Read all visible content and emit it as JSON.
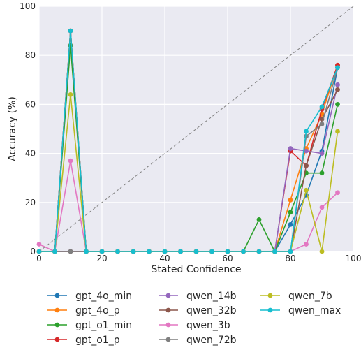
{
  "chart_data": {
    "type": "line",
    "title": "",
    "xlabel": "Stated Confidence",
    "ylabel": "Accuracy (%)",
    "xlim": [
      0,
      100
    ],
    "ylim": [
      0,
      100
    ],
    "xticks": [
      "0",
      "20",
      "40",
      "60",
      "80",
      "100"
    ],
    "yticks": [
      "0",
      "20",
      "40",
      "60",
      "80",
      "100"
    ],
    "grid": true,
    "reference_line": {
      "style": "dashed",
      "color": "#808080",
      "from": [
        0,
        0
      ],
      "to": [
        100,
        100
      ]
    },
    "legend_position": "bottom",
    "series": [
      {
        "name": "gpt_4o_min",
        "color": "#1f77b4",
        "points": [
          [
            0,
            0
          ],
          [
            5,
            0
          ],
          [
            10,
            90
          ],
          [
            15,
            0
          ],
          [
            20,
            0
          ],
          [
            25,
            0
          ],
          [
            30,
            0
          ],
          [
            35,
            0
          ],
          [
            40,
            0
          ],
          [
            45,
            0
          ],
          [
            50,
            0
          ],
          [
            55,
            0
          ],
          [
            60,
            0
          ],
          [
            65,
            0
          ],
          [
            70,
            0
          ],
          [
            75,
            0
          ],
          [
            80,
            11
          ],
          [
            85,
            23
          ],
          [
            90,
            41
          ],
          [
            95,
            75
          ]
        ]
      },
      {
        "name": "gpt_4o_p",
        "color": "#ff7f0e",
        "points": [
          [
            0,
            0
          ],
          [
            5,
            0
          ],
          [
            10,
            90
          ],
          [
            15,
            0
          ],
          [
            20,
            0
          ],
          [
            25,
            0
          ],
          [
            30,
            0
          ],
          [
            35,
            0
          ],
          [
            40,
            0
          ],
          [
            45,
            0
          ],
          [
            50,
            0
          ],
          [
            55,
            0
          ],
          [
            60,
            0
          ],
          [
            65,
            0
          ],
          [
            70,
            0
          ],
          [
            75,
            0
          ],
          [
            80,
            21
          ],
          [
            85,
            42
          ],
          [
            90,
            56
          ],
          [
            95,
            76
          ]
        ]
      },
      {
        "name": "gpt_o1_min",
        "color": "#2ca02c",
        "points": [
          [
            0,
            0
          ],
          [
            5,
            0
          ],
          [
            10,
            84
          ],
          [
            15,
            0
          ],
          [
            20,
            0
          ],
          [
            25,
            0
          ],
          [
            30,
            0
          ],
          [
            35,
            0
          ],
          [
            40,
            0
          ],
          [
            45,
            0
          ],
          [
            50,
            0
          ],
          [
            55,
            0
          ],
          [
            60,
            0
          ],
          [
            65,
            0
          ],
          [
            70,
            13
          ],
          [
            75,
            0
          ],
          [
            80,
            16
          ],
          [
            85,
            32
          ],
          [
            90,
            32
          ],
          [
            95,
            60
          ]
        ]
      },
      {
        "name": "gpt_o1_p",
        "color": "#d62728",
        "points": [
          [
            0,
            0
          ],
          [
            5,
            0
          ],
          [
            10,
            90
          ],
          [
            15,
            0
          ],
          [
            20,
            0
          ],
          [
            25,
            0
          ],
          [
            30,
            0
          ],
          [
            35,
            0
          ],
          [
            40,
            0
          ],
          [
            45,
            0
          ],
          [
            50,
            0
          ],
          [
            55,
            0
          ],
          [
            60,
            0
          ],
          [
            65,
            0
          ],
          [
            70,
            0
          ],
          [
            75,
            0
          ],
          [
            80,
            41
          ],
          [
            85,
            35
          ],
          [
            90,
            58
          ],
          [
            95,
            76
          ]
        ]
      },
      {
        "name": "qwen_14b",
        "color": "#9467bd",
        "points": [
          [
            0,
            0
          ],
          [
            5,
            0
          ],
          [
            10,
            0
          ],
          [
            15,
            0
          ],
          [
            20,
            0
          ],
          [
            25,
            0
          ],
          [
            30,
            0
          ],
          [
            35,
            0
          ],
          [
            40,
            0
          ],
          [
            45,
            0
          ],
          [
            50,
            0
          ],
          [
            55,
            0
          ],
          [
            60,
            0
          ],
          [
            65,
            0
          ],
          [
            70,
            0
          ],
          [
            75,
            0
          ],
          [
            80,
            42
          ],
          [
            85,
            41
          ],
          [
            90,
            40
          ],
          [
            95,
            68
          ]
        ]
      },
      {
        "name": "qwen_32b",
        "color": "#8c564b",
        "points": [
          [
            0,
            0
          ],
          [
            5,
            0
          ],
          [
            10,
            0
          ],
          [
            15,
            0
          ],
          [
            20,
            0
          ],
          [
            25,
            0
          ],
          [
            30,
            0
          ],
          [
            35,
            0
          ],
          [
            40,
            0
          ],
          [
            45,
            0
          ],
          [
            50,
            0
          ],
          [
            55,
            0
          ],
          [
            60,
            0
          ],
          [
            65,
            0
          ],
          [
            70,
            0
          ],
          [
            75,
            0
          ],
          [
            80,
            0
          ],
          [
            85,
            35
          ],
          [
            90,
            54
          ],
          [
            95,
            66
          ]
        ]
      },
      {
        "name": "qwen_3b",
        "color": "#e377c2",
        "points": [
          [
            0,
            3
          ],
          [
            5,
            0
          ],
          [
            10,
            37
          ],
          [
            15,
            0
          ],
          [
            20,
            0
          ],
          [
            25,
            0
          ],
          [
            30,
            0
          ],
          [
            35,
            0
          ],
          [
            40,
            0
          ],
          [
            45,
            0
          ],
          [
            50,
            0
          ],
          [
            55,
            0
          ],
          [
            60,
            0
          ],
          [
            65,
            0
          ],
          [
            70,
            0
          ],
          [
            75,
            0
          ],
          [
            80,
            0
          ],
          [
            85,
            3
          ],
          [
            90,
            18
          ],
          [
            95,
            24
          ]
        ]
      },
      {
        "name": "qwen_72b",
        "color": "#7f7f7f",
        "points": [
          [
            0,
            0
          ],
          [
            5,
            0
          ],
          [
            10,
            0
          ],
          [
            15,
            0
          ],
          [
            20,
            0
          ],
          [
            25,
            0
          ],
          [
            30,
            0
          ],
          [
            35,
            0
          ],
          [
            40,
            0
          ],
          [
            45,
            0
          ],
          [
            50,
            0
          ],
          [
            55,
            0
          ],
          [
            60,
            0
          ],
          [
            65,
            0
          ],
          [
            70,
            0
          ],
          [
            75,
            0
          ],
          [
            80,
            0
          ],
          [
            85,
            47
          ],
          [
            90,
            52
          ],
          [
            95,
            75
          ]
        ]
      },
      {
        "name": "qwen_7b",
        "color": "#bcbd22",
        "points": [
          [
            0,
            0
          ],
          [
            5,
            0
          ],
          [
            10,
            64
          ],
          [
            15,
            0
          ],
          [
            20,
            0
          ],
          [
            25,
            0
          ],
          [
            30,
            0
          ],
          [
            35,
            0
          ],
          [
            40,
            0
          ],
          [
            45,
            0
          ],
          [
            50,
            0
          ],
          [
            55,
            0
          ],
          [
            60,
            0
          ],
          [
            65,
            0
          ],
          [
            70,
            0
          ],
          [
            75,
            0
          ],
          [
            80,
            0
          ],
          [
            85,
            25
          ],
          [
            90,
            0
          ],
          [
            95,
            49
          ]
        ]
      },
      {
        "name": "qwen_max",
        "color": "#17becf",
        "points": [
          [
            0,
            0
          ],
          [
            5,
            0
          ],
          [
            10,
            90
          ],
          [
            15,
            0
          ],
          [
            20,
            0
          ],
          [
            25,
            0
          ],
          [
            30,
            0
          ],
          [
            35,
            0
          ],
          [
            40,
            0
          ],
          [
            45,
            0
          ],
          [
            50,
            0
          ],
          [
            55,
            0
          ],
          [
            60,
            0
          ],
          [
            65,
            0
          ],
          [
            70,
            0
          ],
          [
            75,
            0
          ],
          [
            80,
            0
          ],
          [
            85,
            49
          ],
          [
            90,
            59
          ],
          [
            95,
            75
          ]
        ]
      }
    ]
  }
}
